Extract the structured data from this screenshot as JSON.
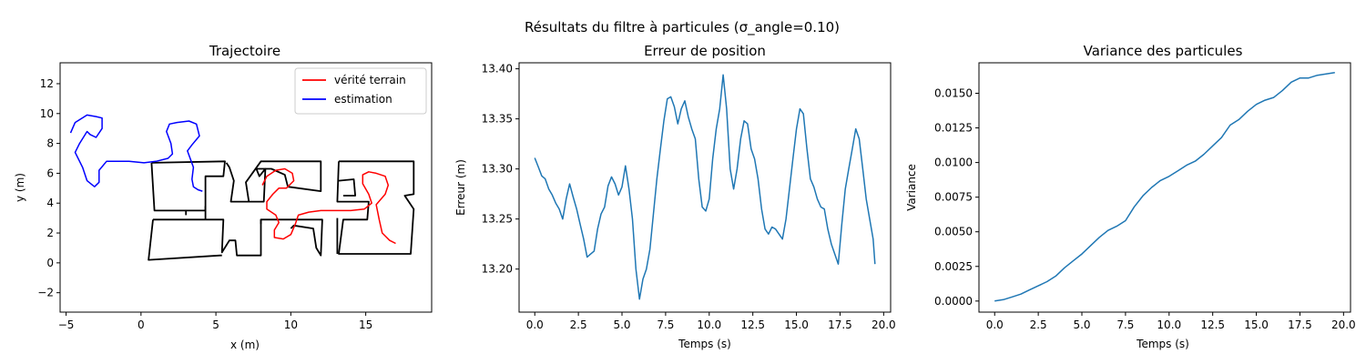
{
  "figure": {
    "suptitle": "Résultats du filtre à particules (σ_angle=0.10)"
  },
  "chart_data": [
    {
      "type": "line",
      "title": "Trajectoire",
      "xlabel": "x (m)",
      "ylabel": "y (m)",
      "xlim": [
        -5.4,
        19.4
      ],
      "ylim": [
        -3.3,
        13.4
      ],
      "xticks": [
        -5,
        0,
        5,
        10,
        15
      ],
      "yticks": [
        -2,
        0,
        2,
        4,
        6,
        8,
        10,
        12
      ],
      "legend": {
        "position": "top-right"
      },
      "walls": {
        "color": "#000000",
        "polylines": [
          [
            [
              0.7,
              6.7
            ],
            [
              5.6,
              6.8
            ],
            [
              5.5,
              5.8
            ],
            [
              4.3,
              5.8
            ],
            [
              4.3,
              3.5
            ],
            [
              0.9,
              3.5
            ],
            [
              0.7,
              6.7
            ]
          ],
          [
            [
              5.7,
              6.7
            ],
            [
              5.9,
              6.4
            ],
            [
              6.2,
              5.5
            ],
            [
              6.0,
              4.1
            ],
            [
              7.2,
              4.1
            ],
            [
              7.0,
              5.4
            ],
            [
              8.0,
              6.8
            ],
            [
              12.0,
              6.8
            ],
            [
              12.0,
              4.8
            ],
            [
              9.8,
              5.1
            ],
            [
              9.6,
              5.9
            ],
            [
              8.7,
              6.3
            ],
            [
              7.7,
              6.3
            ],
            [
              7.9,
              5.8
            ],
            [
              8.3,
              6.3
            ],
            [
              8.2,
              4.1
            ],
            [
              7.2,
              4.1
            ]
          ],
          [
            [
              13.2,
              6.8
            ],
            [
              18.2,
              6.8
            ],
            [
              18.2,
              4.6
            ],
            [
              17.6,
              4.5
            ],
            [
              18.2,
              3.6
            ],
            [
              18.0,
              0.6
            ],
            [
              13.2,
              0.6
            ],
            [
              13.5,
              2.9
            ],
            [
              15.1,
              2.9
            ],
            [
              15.2,
              4.1
            ],
            [
              13.1,
              4.1
            ],
            [
              13.2,
              6.8
            ]
          ],
          [
            [
              13.2,
              5.5
            ],
            [
              14.2,
              5.6
            ],
            [
              14.3,
              4.5
            ],
            [
              13.5,
              4.5
            ]
          ],
          [
            [
              0.8,
              2.9
            ],
            [
              5.5,
              2.9
            ],
            [
              5.4,
              0.7
            ],
            [
              5.9,
              1.5
            ],
            [
              6.3,
              1.5
            ],
            [
              6.4,
              0.5
            ],
            [
              8.0,
              0.5
            ],
            [
              8.0,
              2.9
            ],
            [
              12.1,
              2.9
            ],
            [
              12.0,
              0.5
            ],
            [
              11.7,
              1.0
            ],
            [
              11.5,
              2.3
            ],
            [
              10.2,
              2.5
            ],
            [
              10.0,
              2.3
            ]
          ],
          [
            [
              0.8,
              2.9
            ],
            [
              0.5,
              0.2
            ],
            [
              5.3,
              0.5
            ],
            [
              5.4,
              0.5
            ]
          ],
          [
            [
              3.0,
              3.2
            ],
            [
              3.0,
              3.5
            ]
          ],
          [
            [
              4.3,
              3.8
            ],
            [
              4.3,
              2.9
            ]
          ],
          [
            [
              8.0,
              2.9
            ],
            [
              8.0,
              2.6
            ]
          ],
          [
            [
              13.1,
              0.6
            ],
            [
              13.1,
              3.0
            ]
          ]
        ]
      },
      "series": [
        {
          "name": "vérité terrain",
          "color": "#ff0000",
          "points": [
            [
              8.1,
              5.2
            ],
            [
              8.4,
              5.8
            ],
            [
              9.0,
              6.2
            ],
            [
              9.6,
              6.3
            ],
            [
              10.1,
              6.0
            ],
            [
              10.2,
              5.5
            ],
            [
              9.7,
              5.0
            ],
            [
              9.2,
              5.0
            ],
            [
              8.8,
              4.6
            ],
            [
              8.4,
              4.1
            ],
            [
              8.4,
              3.6
            ],
            [
              9.0,
              3.2
            ],
            [
              9.2,
              2.7
            ],
            [
              8.9,
              2.2
            ],
            [
              8.9,
              1.7
            ],
            [
              9.5,
              1.6
            ],
            [
              10.0,
              1.9
            ],
            [
              10.3,
              2.6
            ],
            [
              10.5,
              3.2
            ],
            [
              11.2,
              3.4
            ],
            [
              12.0,
              3.5
            ],
            [
              13.0,
              3.5
            ],
            [
              14.0,
              3.5
            ],
            [
              14.9,
              3.6
            ],
            [
              15.4,
              4.0
            ],
            [
              15.2,
              4.6
            ],
            [
              14.8,
              5.3
            ],
            [
              14.8,
              5.9
            ],
            [
              15.2,
              6.1
            ],
            [
              15.7,
              6.0
            ],
            [
              16.3,
              5.8
            ],
            [
              16.5,
              5.2
            ],
            [
              16.3,
              4.6
            ],
            [
              15.7,
              3.9
            ],
            [
              15.9,
              2.9
            ],
            [
              16.1,
              2.0
            ],
            [
              16.6,
              1.5
            ],
            [
              17.0,
              1.3
            ]
          ]
        },
        {
          "name": "estimation",
          "color": "#0000ff",
          "points": [
            [
              -4.7,
              8.7
            ],
            [
              -4.4,
              9.4
            ],
            [
              -3.6,
              9.9
            ],
            [
              -3.0,
              9.8
            ],
            [
              -2.6,
              9.7
            ],
            [
              -2.6,
              9.0
            ],
            [
              -3.0,
              8.4
            ],
            [
              -3.4,
              8.6
            ],
            [
              -3.6,
              8.8
            ],
            [
              -4.1,
              8.0
            ],
            [
              -4.4,
              7.4
            ],
            [
              -3.9,
              6.4
            ],
            [
              -3.6,
              5.5
            ],
            [
              -3.1,
              5.1
            ],
            [
              -2.8,
              5.4
            ],
            [
              -2.8,
              6.2
            ],
            [
              -2.3,
              6.8
            ],
            [
              -1.6,
              6.8
            ],
            [
              -0.8,
              6.8
            ],
            [
              0.2,
              6.7
            ],
            [
              1.0,
              6.8
            ],
            [
              1.8,
              7.0
            ],
            [
              2.1,
              7.3
            ],
            [
              2.0,
              8.0
            ],
            [
              1.7,
              8.8
            ],
            [
              1.9,
              9.3
            ],
            [
              2.4,
              9.4
            ],
            [
              3.2,
              9.5
            ],
            [
              3.7,
              9.3
            ],
            [
              3.9,
              8.5
            ],
            [
              3.4,
              7.9
            ],
            [
              3.1,
              7.5
            ],
            [
              3.5,
              6.4
            ],
            [
              3.4,
              5.6
            ],
            [
              3.5,
              5.1
            ],
            [
              3.8,
              4.9
            ],
            [
              4.1,
              4.8
            ]
          ]
        }
      ]
    },
    {
      "type": "line",
      "title": "Erreur de position",
      "xlabel": "Temps (s)",
      "ylabel": "Erreur (m)",
      "xlim": [
        -0.9,
        20.4
      ],
      "ylim": [
        13.157,
        13.406
      ],
      "xticks": [
        0.0,
        2.5,
        5.0,
        7.5,
        10.0,
        12.5,
        15.0,
        17.5,
        20.0
      ],
      "yticks": [
        13.2,
        13.25,
        13.3,
        13.35,
        13.4
      ],
      "series": [
        {
          "color": "#1f77b4",
          "x": [
            0.0,
            0.2,
            0.4,
            0.6,
            0.8,
            1.0,
            1.2,
            1.4,
            1.6,
            1.8,
            2.0,
            2.2,
            2.4,
            2.6,
            2.8,
            3.0,
            3.2,
            3.4,
            3.6,
            3.8,
            4.0,
            4.2,
            4.4,
            4.6,
            4.8,
            5.0,
            5.2,
            5.4,
            5.6,
            5.8,
            6.0,
            6.2,
            6.4,
            6.6,
            6.8,
            7.0,
            7.2,
            7.4,
            7.6,
            7.8,
            8.0,
            8.2,
            8.4,
            8.6,
            8.8,
            9.0,
            9.2,
            9.4,
            9.6,
            9.8,
            10.0,
            10.2,
            10.4,
            10.6,
            10.8,
            11.0,
            11.2,
            11.4,
            11.6,
            11.8,
            12.0,
            12.2,
            12.4,
            12.6,
            12.8,
            13.0,
            13.2,
            13.4,
            13.6,
            13.8,
            14.0,
            14.2,
            14.4,
            14.6,
            14.8,
            15.0,
            15.2,
            15.4,
            15.6,
            15.8,
            16.0,
            16.2,
            16.4,
            16.6,
            16.8,
            17.0,
            17.2,
            17.4,
            17.6,
            17.8,
            18.0,
            18.2,
            18.4,
            18.6,
            18.8,
            19.0,
            19.2,
            19.4,
            19.5
          ],
          "y": [
            13.311,
            13.302,
            13.293,
            13.29,
            13.28,
            13.274,
            13.266,
            13.26,
            13.25,
            13.27,
            13.285,
            13.272,
            13.26,
            13.245,
            13.23,
            13.212,
            13.215,
            13.218,
            13.24,
            13.255,
            13.262,
            13.283,
            13.292,
            13.285,
            13.274,
            13.282,
            13.303,
            13.28,
            13.25,
            13.2,
            13.17,
            13.19,
            13.2,
            13.22,
            13.255,
            13.29,
            13.32,
            13.348,
            13.37,
            13.372,
            13.362,
            13.345,
            13.36,
            13.368,
            13.352,
            13.34,
            13.33,
            13.29,
            13.262,
            13.258,
            13.27,
            13.31,
            13.34,
            13.36,
            13.394,
            13.36,
            13.3,
            13.28,
            13.3,
            13.33,
            13.348,
            13.345,
            13.32,
            13.31,
            13.29,
            13.26,
            13.24,
            13.235,
            13.242,
            13.24,
            13.235,
            13.23,
            13.25,
            13.28,
            13.31,
            13.34,
            13.36,
            13.355,
            13.32,
            13.29,
            13.282,
            13.27,
            13.262,
            13.26,
            13.24,
            13.225,
            13.215,
            13.205,
            13.245,
            13.28,
            13.3,
            13.32,
            13.34,
            13.33,
            13.3,
            13.27,
            13.25,
            13.23,
            13.205
          ]
        }
      ]
    },
    {
      "type": "line",
      "title": "Variance des particules",
      "xlabel": "Temps (s)",
      "ylabel": "Variance",
      "xlim": [
        -0.9,
        20.4
      ],
      "ylim": [
        -0.0008,
        0.0172
      ],
      "xticks": [
        0.0,
        2.5,
        5.0,
        7.5,
        10.0,
        12.5,
        15.0,
        17.5,
        20.0
      ],
      "yticks": [
        0.0,
        0.0025,
        0.005,
        0.0075,
        0.01,
        0.0125,
        0.015
      ],
      "series": [
        {
          "color": "#1f77b4",
          "x": [
            0.0,
            0.5,
            1.0,
            1.5,
            2.0,
            2.5,
            3.0,
            3.5,
            4.0,
            4.5,
            5.0,
            5.5,
            6.0,
            6.5,
            7.0,
            7.5,
            8.0,
            8.5,
            9.0,
            9.5,
            10.0,
            10.5,
            11.0,
            11.5,
            12.0,
            12.5,
            13.0,
            13.5,
            14.0,
            14.5,
            15.0,
            15.5,
            16.0,
            16.5,
            17.0,
            17.5,
            18.0,
            18.5,
            19.0,
            19.5
          ],
          "y": [
            0.0,
            0.0001,
            0.0003,
            0.0005,
            0.0008,
            0.0011,
            0.0014,
            0.0018,
            0.0024,
            0.0029,
            0.0034,
            0.004,
            0.0046,
            0.0051,
            0.0054,
            0.0058,
            0.0068,
            0.0076,
            0.0082,
            0.0087,
            0.009,
            0.0094,
            0.0098,
            0.0101,
            0.0106,
            0.0112,
            0.0118,
            0.0127,
            0.0131,
            0.0137,
            0.0142,
            0.0145,
            0.0147,
            0.0152,
            0.0158,
            0.0161,
            0.0161,
            0.0163,
            0.0164,
            0.0165
          ]
        }
      ]
    }
  ]
}
